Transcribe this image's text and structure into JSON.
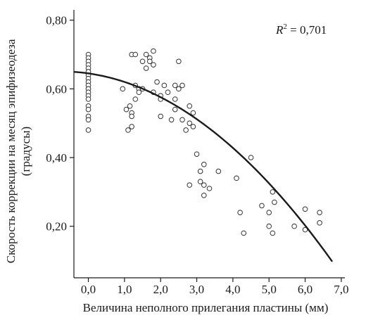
{
  "chart_data": {
    "type": "scatter",
    "xlabel": "Величина неполного прилегания пластины (мм)",
    "ylabel_line1": "Скорость коррекции на месяц эпифизеодеза",
    "ylabel_line2": "(градусы)",
    "annotation_prefix": "R",
    "annotation_sup": "2",
    "annotation_value": " = 0,701",
    "xlim": [
      -0.4,
      7.1
    ],
    "ylim": [
      0.05,
      0.83
    ],
    "x_ticks": [
      0,
      1,
      2,
      3,
      4,
      5,
      6,
      7
    ],
    "x_tick_labels": [
      "0,0",
      "1,0",
      "2,0",
      "3,0",
      "4,0",
      "5,0",
      "6,0",
      "7,0"
    ],
    "y_ticks": [
      0.2,
      0.4,
      0.6,
      0.8
    ],
    "y_tick_labels": [
      "0,20",
      "0,40",
      "0,60",
      "0,80"
    ],
    "grid": false,
    "points": [
      [
        0,
        0.7
      ],
      [
        0,
        0.69
      ],
      [
        0,
        0.68
      ],
      [
        0,
        0.67
      ],
      [
        0,
        0.66
      ],
      [
        0,
        0.65
      ],
      [
        0,
        0.64
      ],
      [
        0,
        0.63
      ],
      [
        0,
        0.62
      ],
      [
        0,
        0.61
      ],
      [
        0,
        0.6
      ],
      [
        0,
        0.59
      ],
      [
        0,
        0.58
      ],
      [
        0,
        0.57
      ],
      [
        0,
        0.55
      ],
      [
        0,
        0.54
      ],
      [
        0,
        0.52
      ],
      [
        0,
        0.51
      ],
      [
        0,
        0.48
      ],
      [
        0.95,
        0.6
      ],
      [
        1.05,
        0.54
      ],
      [
        1.1,
        0.48
      ],
      [
        1.15,
        0.55
      ],
      [
        1.2,
        0.53
      ],
      [
        1.2,
        0.52
      ],
      [
        1.2,
        0.49
      ],
      [
        1.2,
        0.7
      ],
      [
        1.3,
        0.7
      ],
      [
        1.3,
        0.61
      ],
      [
        1.3,
        0.57
      ],
      [
        1.4,
        0.6
      ],
      [
        1.4,
        0.59
      ],
      [
        1.5,
        0.68
      ],
      [
        1.5,
        0.6
      ],
      [
        1.6,
        0.7
      ],
      [
        1.6,
        0.66
      ],
      [
        1.7,
        0.69
      ],
      [
        1.7,
        0.68
      ],
      [
        1.8,
        0.71
      ],
      [
        1.8,
        0.67
      ],
      [
        1.8,
        0.59
      ],
      [
        1.9,
        0.62
      ],
      [
        2.0,
        0.58
      ],
      [
        2.0,
        0.57
      ],
      [
        2.0,
        0.52
      ],
      [
        2.1,
        0.61
      ],
      [
        2.2,
        0.59
      ],
      [
        2.3,
        0.51
      ],
      [
        2.4,
        0.61
      ],
      [
        2.4,
        0.57
      ],
      [
        2.4,
        0.54
      ],
      [
        2.5,
        0.68
      ],
      [
        2.5,
        0.6
      ],
      [
        2.6,
        0.61
      ],
      [
        2.6,
        0.51
      ],
      [
        2.7,
        0.48
      ],
      [
        2.8,
        0.55
      ],
      [
        2.8,
        0.5
      ],
      [
        2.9,
        0.53
      ],
      [
        2.9,
        0.49
      ],
      [
        2.8,
        0.32
      ],
      [
        3.0,
        0.41
      ],
      [
        3.1,
        0.36
      ],
      [
        3.1,
        0.33
      ],
      [
        3.2,
        0.38
      ],
      [
        3.2,
        0.32
      ],
      [
        3.2,
        0.29
      ],
      [
        3.35,
        0.31
      ],
      [
        3.6,
        0.36
      ],
      [
        4.1,
        0.34
      ],
      [
        4.2,
        0.24
      ],
      [
        4.3,
        0.18
      ],
      [
        4.5,
        0.4
      ],
      [
        4.8,
        0.26
      ],
      [
        5.0,
        0.24
      ],
      [
        5.0,
        0.2
      ],
      [
        5.1,
        0.3
      ],
      [
        5.1,
        0.18
      ],
      [
        5.15,
        0.27
      ],
      [
        5.7,
        0.2
      ],
      [
        6.0,
        0.25
      ],
      [
        6.0,
        0.19
      ],
      [
        6.4,
        0.24
      ],
      [
        6.4,
        0.21
      ]
    ],
    "fit": {
      "type": "quadratic",
      "coefficients": [
        0.645,
        -0.015,
        -0.0098
      ],
      "x_range": [
        -0.4,
        6.75
      ]
    }
  }
}
